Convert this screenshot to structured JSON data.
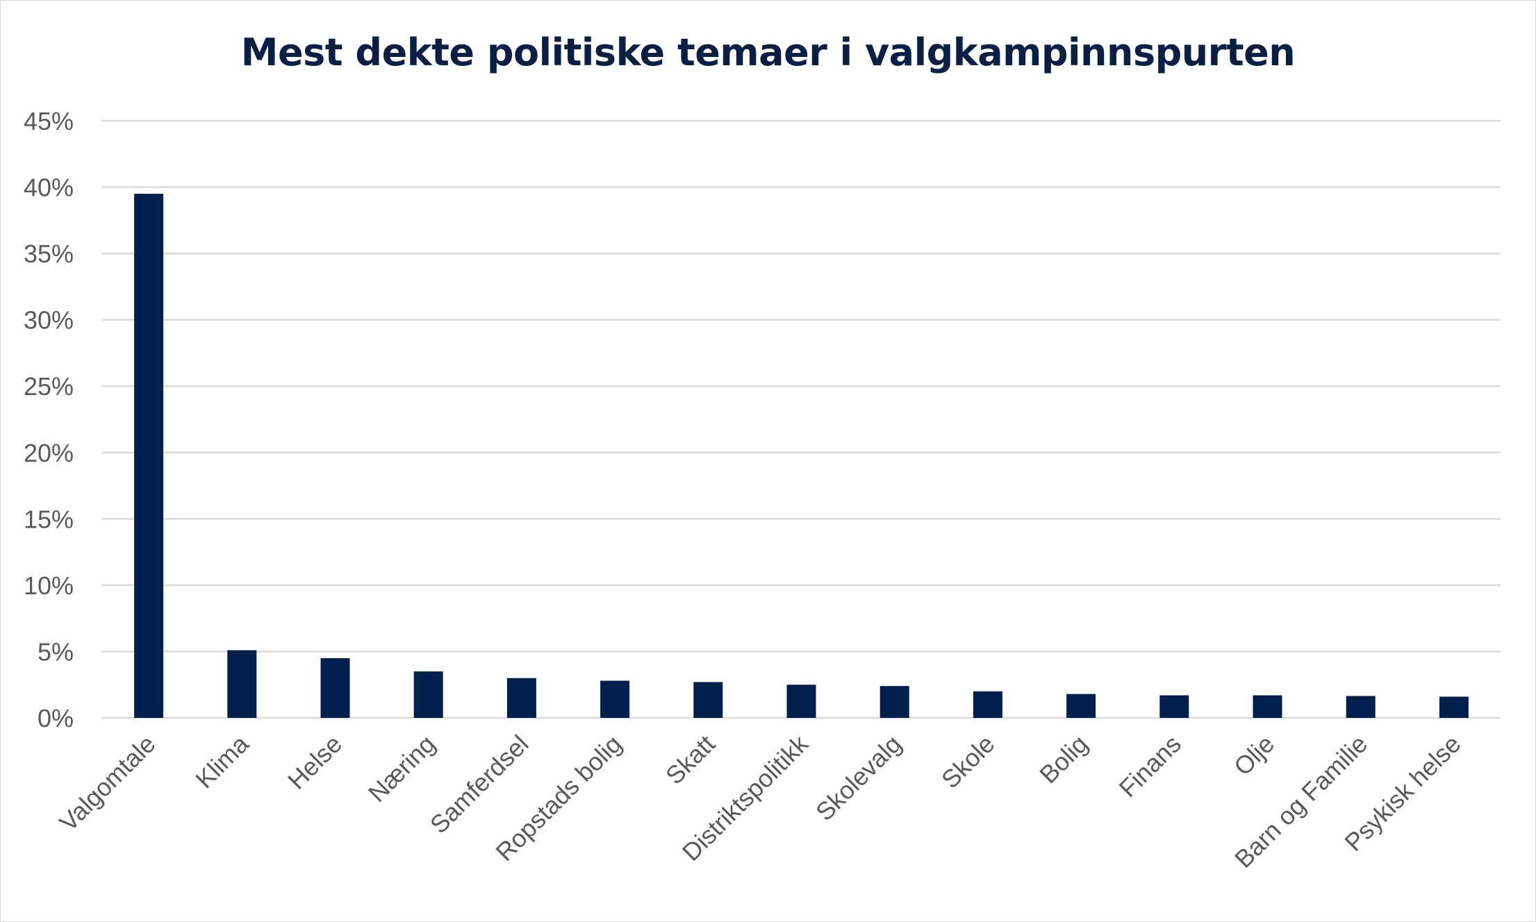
{
  "colors": {
    "bar": "#001f4d",
    "grid": "#d9d9d9",
    "title": "#0a1f44",
    "tick": "#595959"
  },
  "chart_data": {
    "type": "bar",
    "title": "Mest dekte politiske temaer i valgkampinnspurten",
    "xlabel": "",
    "ylabel": "",
    "ylim": [
      0,
      45
    ],
    "yticks": [
      0,
      5,
      10,
      15,
      20,
      25,
      30,
      35,
      40,
      45
    ],
    "ytick_labels": [
      "0%",
      "5%",
      "10%",
      "15%",
      "20%",
      "25%",
      "30%",
      "35%",
      "40%",
      "45%"
    ],
    "grid": true,
    "categories": [
      "Valgomtale",
      "Klima",
      "Helse",
      "Næring",
      "Samferdsel",
      "Ropstads bolig",
      "Skatt",
      "Distriktspolitikk",
      "Skolevalg",
      "Skole",
      "Bolig",
      "Finans",
      "Olje",
      "Barn og Familie",
      "Psykisk helse"
    ],
    "values": [
      39.5,
      5.1,
      4.5,
      3.5,
      3.0,
      2.8,
      2.7,
      2.5,
      2.4,
      2.0,
      1.8,
      1.7,
      1.7,
      1.65,
      1.6
    ]
  }
}
